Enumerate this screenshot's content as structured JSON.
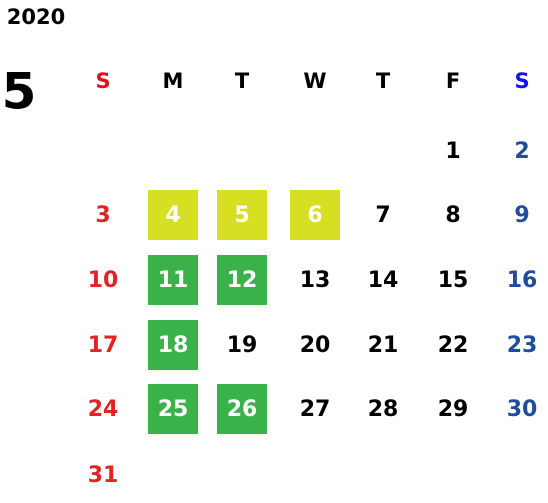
{
  "year": "2020",
  "month": "5",
  "weekdays": [
    "S",
    "M",
    "T",
    "W",
    "T",
    "F",
    "S"
  ],
  "weeks": [
    [
      null,
      null,
      null,
      null,
      null,
      1,
      2
    ],
    [
      3,
      {
        "day": 4,
        "color": "#d6df22"
      },
      {
        "day": 5,
        "color": "#d6df22"
      },
      {
        "day": 6,
        "color": "#d6df22"
      },
      7,
      8,
      9
    ],
    [
      10,
      {
        "day": 11,
        "color": "#3bb14a"
      },
      {
        "day": 12,
        "color": "#3bb14a"
      },
      13,
      14,
      15,
      16
    ],
    [
      17,
      {
        "day": 18,
        "color": "#3bb14a"
      },
      19,
      20,
      21,
      22,
      23
    ],
    [
      24,
      {
        "day": 25,
        "color": "#3bb14a"
      },
      {
        "day": 26,
        "color": "#3bb14a"
      },
      27,
      28,
      29,
      30
    ],
    [
      31
    ]
  ]
}
